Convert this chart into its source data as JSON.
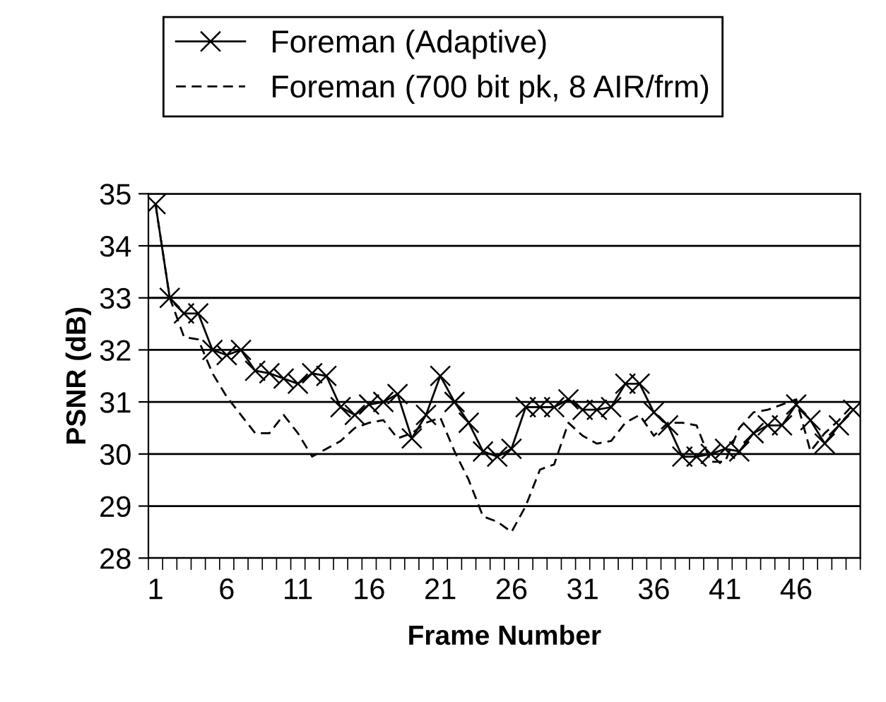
{
  "chart_data": {
    "type": "line",
    "xlabel": "Frame Number",
    "ylabel": "PSNR (dB)",
    "categories": [
      "1",
      null,
      null,
      null,
      null,
      "6",
      null,
      null,
      null,
      null,
      "11",
      null,
      null,
      null,
      null,
      "16",
      null,
      null,
      null,
      null,
      "21",
      null,
      null,
      null,
      null,
      "26",
      null,
      null,
      null,
      null,
      "31",
      null,
      null,
      null,
      null,
      "36",
      null,
      null,
      null,
      null,
      "41",
      null,
      null,
      null,
      null,
      "46",
      null,
      null,
      null,
      null
    ],
    "series": [
      {
        "name": "Foreman (Adaptive)",
        "color": "#000000",
        "marker": "cross",
        "line_style": "solid",
        "values": [
          34.8,
          33.0,
          32.7,
          32.7,
          32.0,
          31.9,
          32.0,
          31.6,
          31.55,
          31.45,
          31.35,
          31.55,
          31.5,
          30.9,
          30.75,
          30.95,
          31.0,
          31.15,
          30.3,
          30.75,
          31.5,
          31.0,
          30.6,
          30.05,
          29.95,
          30.1,
          30.9,
          30.9,
          30.9,
          31.05,
          30.85,
          30.85,
          30.9,
          31.35,
          31.35,
          30.8,
          30.55,
          29.95,
          29.95,
          30.0,
          30.1,
          30.05,
          30.4,
          30.55,
          30.55,
          30.95,
          30.65,
          30.2,
          30.55,
          30.85
        ]
      },
      {
        "name": "Foreman (700 bit pk, 8 AIR/frm)",
        "color": "#000000",
        "marker": "none",
        "line_style": "dashed",
        "values": [
          34.8,
          33.0,
          32.25,
          32.2,
          31.55,
          31.1,
          30.75,
          30.4,
          30.4,
          30.75,
          30.4,
          29.95,
          30.1,
          30.25,
          30.5,
          30.6,
          30.65,
          30.3,
          30.4,
          30.6,
          30.7,
          30.05,
          29.5,
          28.8,
          28.7,
          28.5,
          29.0,
          29.7,
          29.8,
          30.6,
          30.35,
          30.2,
          30.25,
          30.6,
          30.75,
          30.35,
          30.6,
          30.6,
          30.55,
          29.85,
          29.85,
          30.5,
          30.8,
          30.85,
          30.95,
          31.05,
          30.05,
          30.4,
          30.65,
          30.95
        ]
      }
    ],
    "ylim": [
      28,
      35
    ],
    "yticks": [
      28,
      29,
      30,
      31,
      32,
      33,
      34,
      35
    ],
    "grid": "y",
    "legend": "top"
  }
}
